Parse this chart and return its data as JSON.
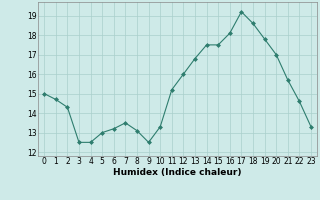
{
  "x": [
    0,
    1,
    2,
    3,
    4,
    5,
    6,
    7,
    8,
    9,
    10,
    11,
    12,
    13,
    14,
    15,
    16,
    17,
    18,
    19,
    20,
    21,
    22,
    23
  ],
  "y": [
    15.0,
    14.7,
    14.3,
    12.5,
    12.5,
    13.0,
    13.2,
    13.5,
    13.1,
    12.5,
    13.3,
    15.2,
    16.0,
    16.8,
    17.5,
    17.5,
    18.1,
    19.2,
    18.6,
    17.8,
    17.0,
    15.7,
    14.6,
    13.3
  ],
  "xlabel": "Humidex (Indice chaleur)",
  "xlim": [
    -0.5,
    23.5
  ],
  "ylim": [
    11.8,
    19.7
  ],
  "yticks": [
    12,
    13,
    14,
    15,
    16,
    17,
    18,
    19
  ],
  "xtick_labels": [
    "0",
    "1",
    "2",
    "3",
    "4",
    "5",
    "6",
    "7",
    "8",
    "9",
    "10",
    "11",
    "12",
    "13",
    "14",
    "15",
    "16",
    "17",
    "18",
    "19",
    "20",
    "21",
    "22",
    "23"
  ],
  "line_color": "#2e7d6e",
  "marker": "D",
  "marker_size": 2.0,
  "bg_color": "#ceeae8",
  "grid_color": "#aacfcc",
  "tick_fontsize": 5.5,
  "xlabel_fontsize": 6.5
}
